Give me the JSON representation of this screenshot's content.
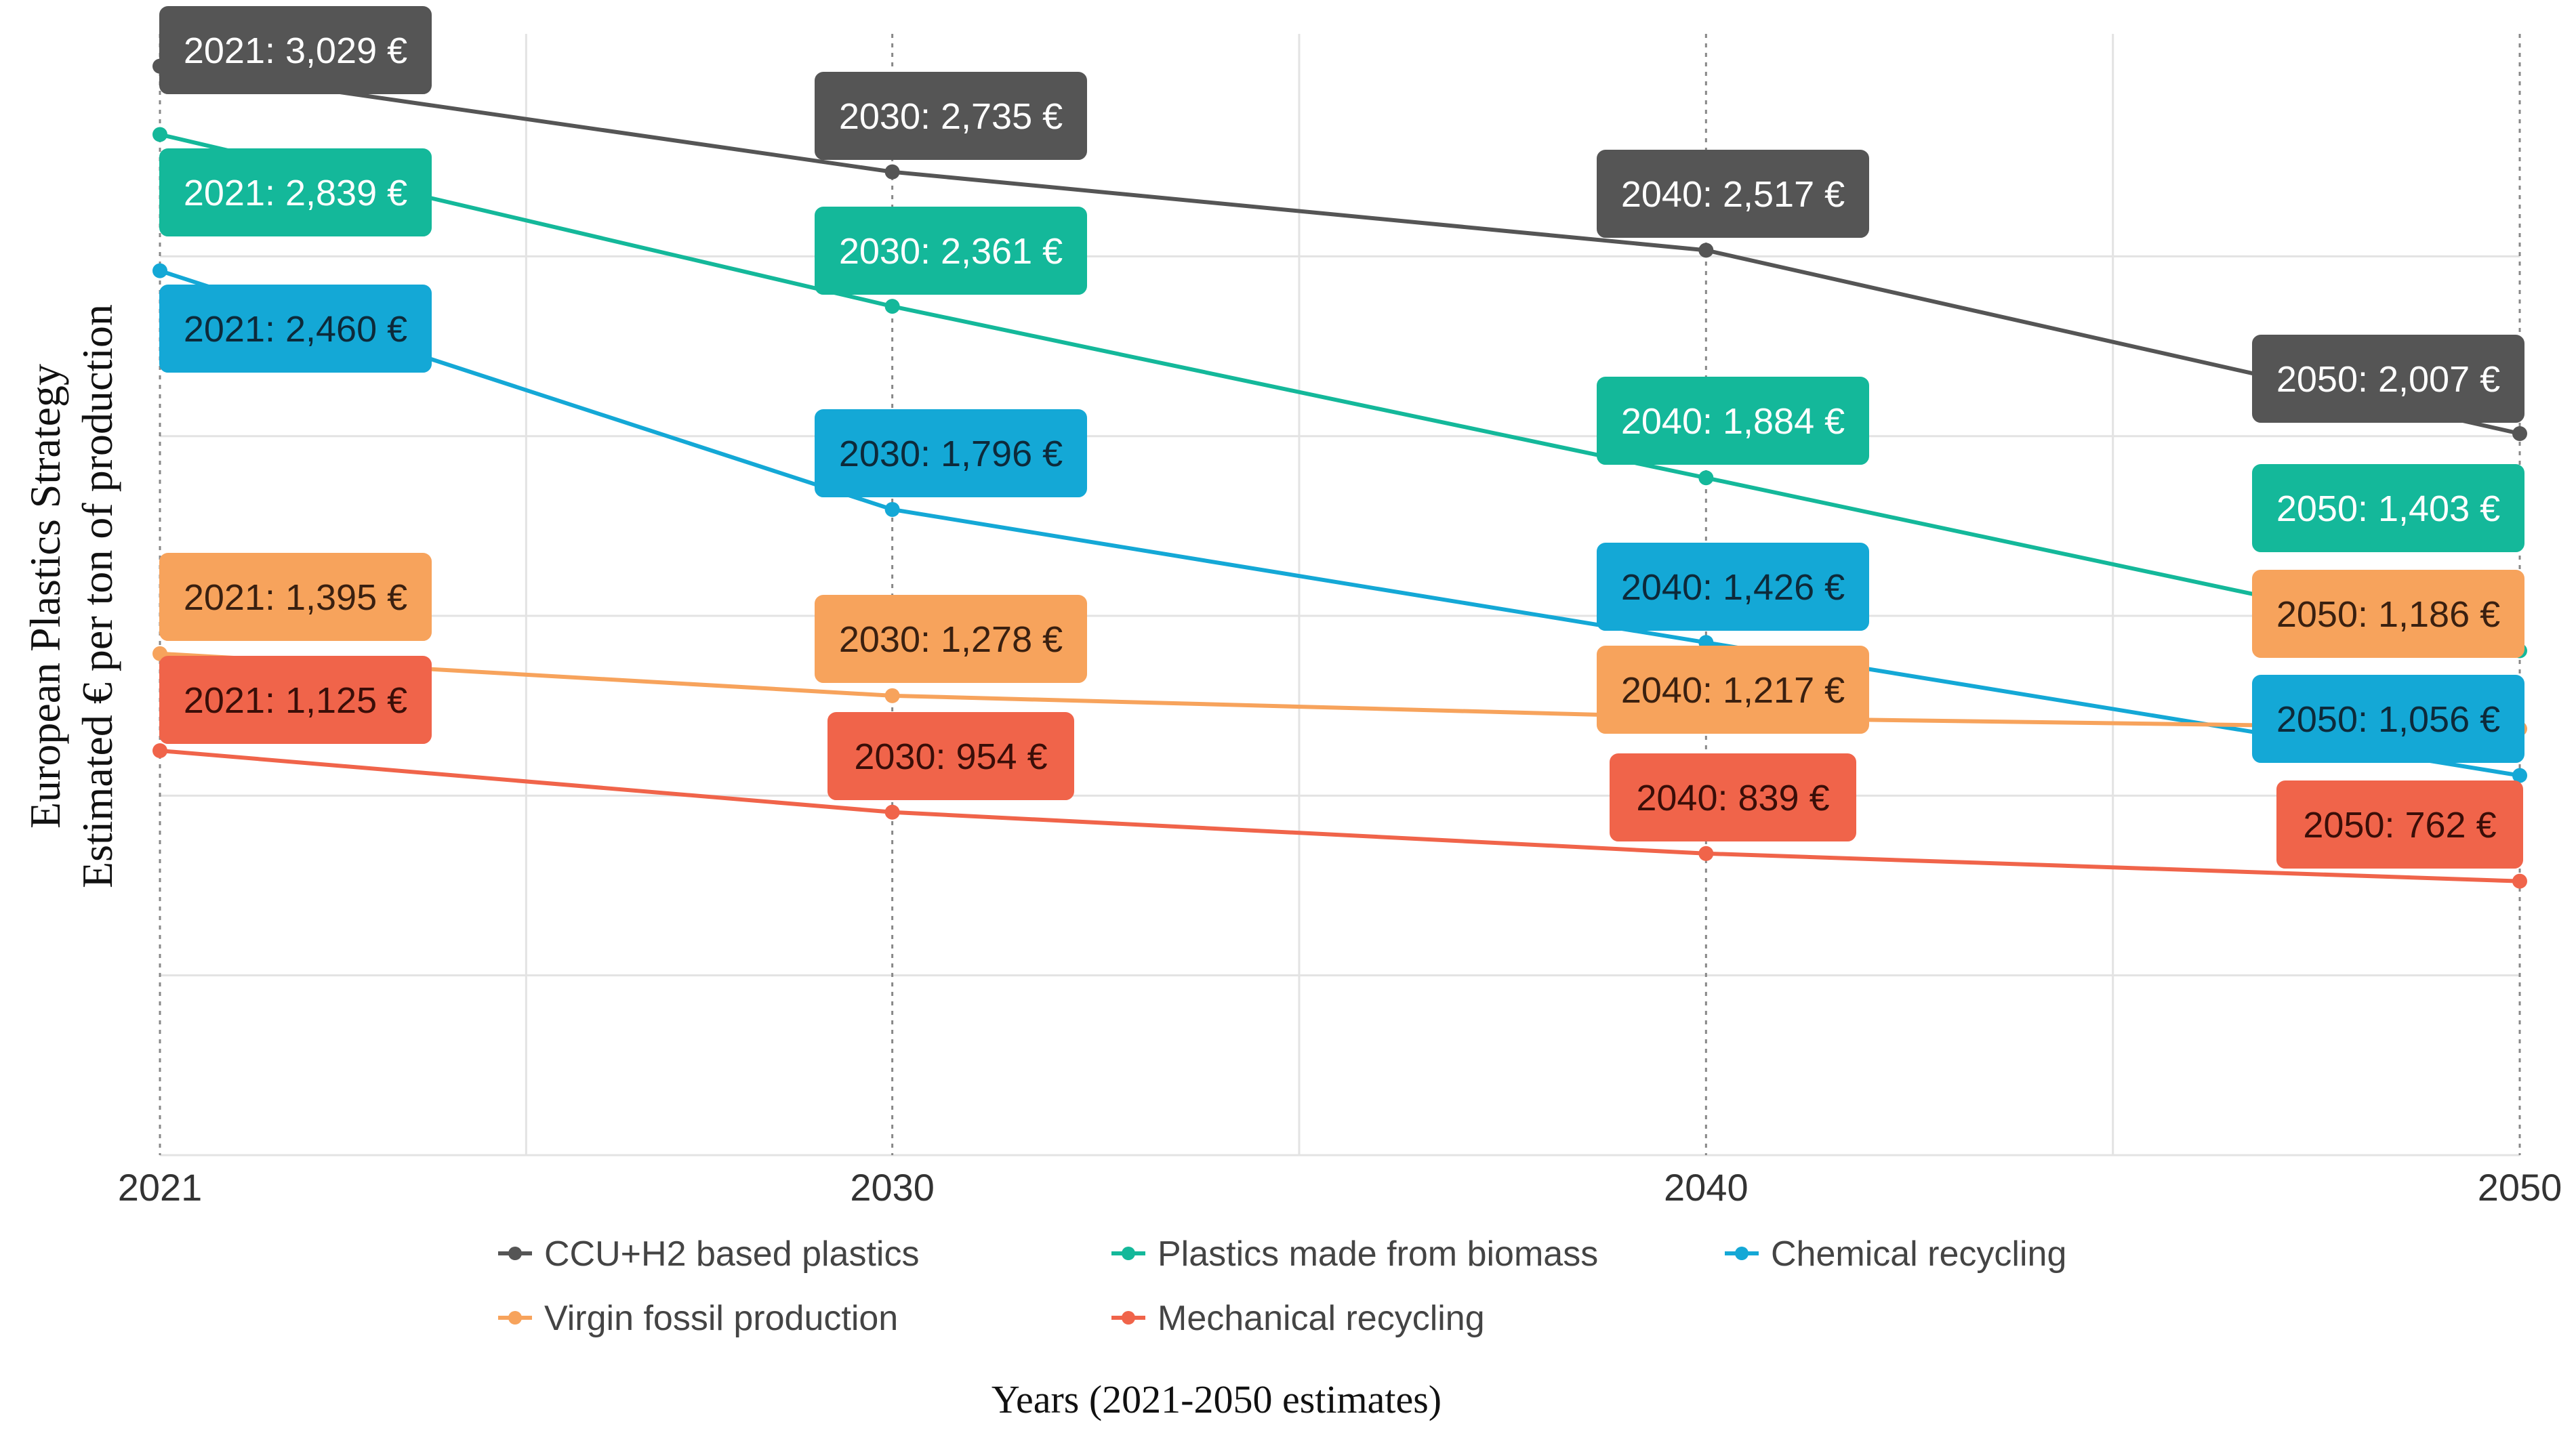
{
  "chart_data": {
    "type": "line",
    "title": "",
    "ylabel": [
      "European Plastics Strategy",
      "Estimated € per ton of production"
    ],
    "xlabel": "Years (2021-2050 estimates)",
    "x": [
      "2021",
      "2030",
      "2040",
      "2050"
    ],
    "x_numeric": [
      2021,
      2030,
      2040,
      2050
    ],
    "xlim": [
      2021,
      2050
    ],
    "ylim": [
      0,
      3100
    ],
    "grid": true,
    "legend_position": "bottom",
    "series": [
      {
        "name": "CCU+H2 based plastics",
        "color": "#555555",
        "text_color": "#ffffff",
        "values": [
          3029,
          2735,
          2517,
          2007
        ],
        "labels": [
          "2021: 3,029 €",
          "2030: 2,735 €",
          "2040: 2,517 €",
          "2050: 2,007 €"
        ]
      },
      {
        "name": "Plastics made from biomass",
        "color": "#14b89a",
        "text_color": "#ffffff",
        "values": [
          2839,
          2361,
          1884,
          1403
        ],
        "labels": [
          "2021: 2,839 €",
          "2030: 2,361 €",
          "2040: 1,884 €",
          "2050: 1,403 €"
        ]
      },
      {
        "name": "Chemical recycling",
        "color": "#14a8d6",
        "text_color": "#0d2a3a",
        "values": [
          2460,
          1796,
          1426,
          1056
        ],
        "labels": [
          "2021: 2,460 €",
          "2030: 1,796 €",
          "2040: 1,426 €",
          "2050: 1,056 €"
        ]
      },
      {
        "name": "Virgin fossil production",
        "color": "#f7a35c",
        "text_color": "#3a2010",
        "values": [
          1395,
          1278,
          1217,
          1186
        ],
        "labels": [
          "2021: 1,395 €",
          "2030: 1,278 €",
          "2040: 1,217 €",
          "2050: 1,186 €"
        ]
      },
      {
        "name": "Mechanical recycling",
        "color": "#f0644a",
        "text_color": "#3a0e08",
        "values": [
          1125,
          954,
          839,
          762
        ],
        "labels": [
          "2021: 1,125 €",
          "2030: 954 €",
          "2040: 839 €",
          "2050: 762 €"
        ]
      }
    ]
  }
}
